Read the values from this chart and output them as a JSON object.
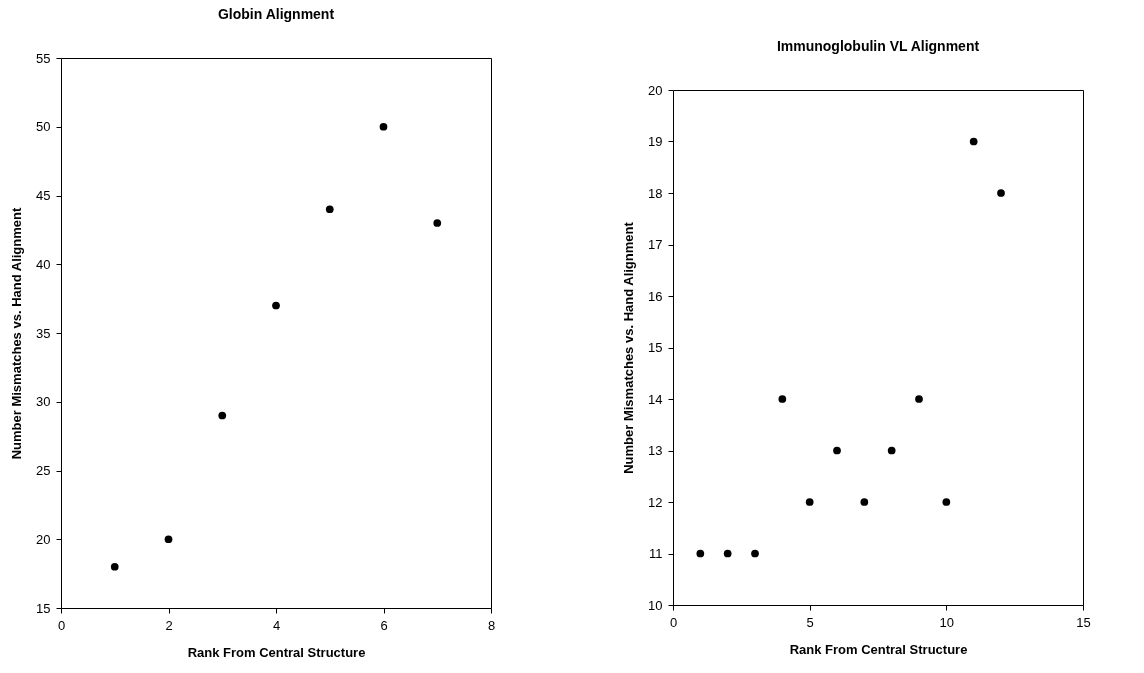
{
  "chart_data": [
    {
      "type": "scatter",
      "title": "Globin Alignment",
      "xlabel": "Rank From Central Structure",
      "ylabel": "Number Mismatches vs. Hand Alignment",
      "x": [
        1,
        2,
        3,
        4,
        5,
        6,
        7
      ],
      "series": [
        {
          "color": "#000000",
          "values": [
            18,
            20,
            29,
            37,
            44,
            50,
            43
          ]
        }
      ],
      "xlim": [
        0,
        8
      ],
      "xticks": [
        0,
        2,
        4,
        6,
        8
      ],
      "ylim": [
        15,
        55
      ],
      "yticks": [
        15,
        20,
        25,
        30,
        35,
        40,
        45,
        50,
        55
      ],
      "grid": false,
      "legend": false,
      "marker": "circle"
    },
    {
      "type": "scatter",
      "title": "Immunoglobulin VL Alignment",
      "xlabel": "Rank From Central Structure",
      "ylabel": "Number Mismatches vs. Hand Alignment",
      "x": [
        1,
        2,
        3,
        4,
        5,
        6,
        7,
        8,
        9,
        10,
        11,
        12
      ],
      "series": [
        {
          "color": "#000000",
          "values": [
            11,
            11,
            11,
            14,
            12,
            13,
            12,
            13,
            14,
            12,
            19,
            18
          ]
        }
      ],
      "xlim": [
        0,
        15
      ],
      "xticks": [
        0,
        5,
        10,
        15
      ],
      "ylim": [
        10,
        20
      ],
      "yticks": [
        10,
        11,
        12,
        13,
        14,
        15,
        16,
        17,
        18,
        19,
        20
      ],
      "grid": false,
      "legend": false,
      "marker": "circle"
    }
  ]
}
